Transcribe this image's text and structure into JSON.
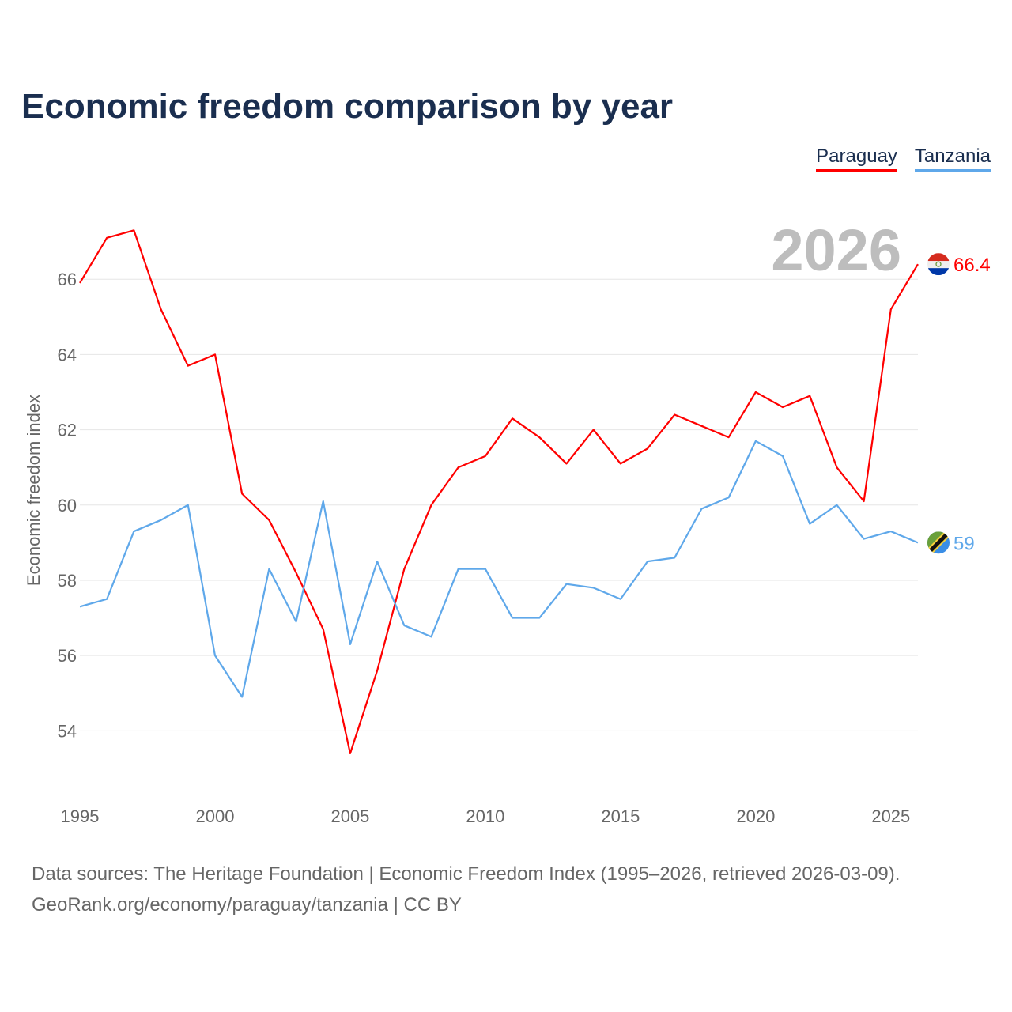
{
  "chart_data": {
    "type": "line",
    "title": "Economic freedom comparison by year",
    "xlabel": "",
    "ylabel": "Economic freedom index",
    "xlim": [
      1995,
      2026
    ],
    "ylim": [
      52.2,
      68
    ],
    "x_ticks": [
      1995,
      2000,
      2005,
      2010,
      2015,
      2020,
      2025
    ],
    "y_ticks": [
      54,
      56,
      58,
      60,
      62,
      64,
      66
    ],
    "grid": true,
    "legend_placement": "top-right",
    "current_year_label": "2026",
    "x": [
      1995,
      1996,
      1997,
      1998,
      1999,
      2000,
      2001,
      2002,
      2003,
      2004,
      2005,
      2006,
      2007,
      2008,
      2009,
      2010,
      2011,
      2012,
      2013,
      2014,
      2015,
      2016,
      2017,
      2018,
      2019,
      2020,
      2021,
      2022,
      2023,
      2024,
      2025,
      2026
    ],
    "series": [
      {
        "name": "Paraguay",
        "color": "#ff0000",
        "end_label": "66.4",
        "flag": "paraguay-flag",
        "values": [
          65.9,
          67.1,
          67.3,
          65.2,
          63.7,
          64.0,
          60.3,
          59.6,
          58.2,
          56.7,
          53.4,
          55.6,
          58.3,
          60.0,
          61.0,
          61.3,
          62.3,
          61.8,
          61.1,
          62.0,
          61.1,
          61.5,
          62.4,
          62.1,
          61.8,
          63.0,
          62.6,
          62.9,
          61.0,
          60.1,
          65.2,
          66.4
        ]
      },
      {
        "name": "Tanzania",
        "color": "#5fa8ea",
        "end_label": "59",
        "flag": "tanzania-flag",
        "values": [
          57.3,
          57.5,
          59.3,
          59.6,
          60.0,
          56.0,
          54.9,
          58.3,
          56.9,
          60.1,
          56.3,
          58.5,
          56.8,
          56.5,
          58.3,
          58.3,
          57.0,
          57.0,
          57.9,
          57.8,
          57.5,
          58.5,
          58.6,
          59.9,
          60.2,
          61.7,
          61.3,
          59.5,
          60.0,
          59.1,
          59.3,
          59.0
        ]
      }
    ]
  },
  "footer": {
    "line1": "Data sources: The Heritage Foundation | Economic Freedom Index (1995–2026, retrieved 2026-03-09).",
    "line2": "GeoRank.org/economy/paraguay/tanzania | CC BY"
  }
}
